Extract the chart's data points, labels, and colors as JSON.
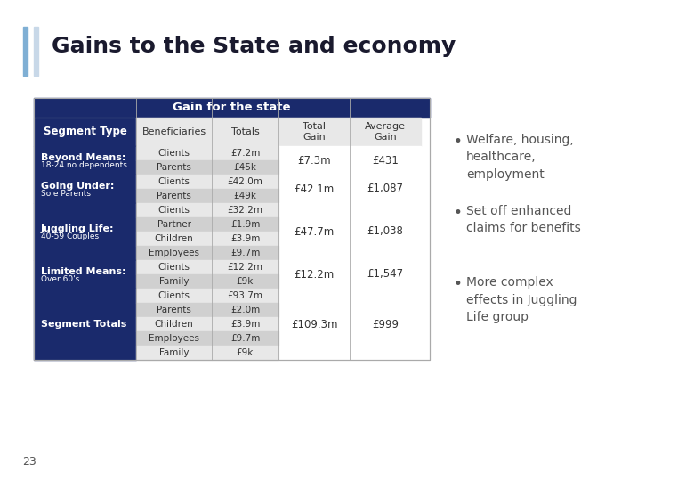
{
  "title": "Gains to the State and economy",
  "title_color": "#1a1a2e",
  "bg_color": "#ffffff",
  "table_header_bg": "#1a2a6c",
  "table_header_text": "#ffffff",
  "segment_bg": "#1a2a6c",
  "segment_text": "#ffffff",
  "row_odd_bg": "#ffffff",
  "row_even_bg": "#d9d9d9",
  "table_text_color": "#333333",
  "total_gain_text": "#333333",
  "gain_for_state_title": "Gain for the state",
  "col_headers": [
    "Segment Type",
    "Beneficiaries",
    "Totals",
    "Total\nGain",
    "Average\nGain"
  ],
  "segments": [
    {
      "name": "Beyond Means:",
      "sub": "18-24 no dependents",
      "rows": [
        [
          "Clients",
          "£7.2m"
        ],
        [
          "Parents",
          "£45k"
        ]
      ],
      "total_gain": "£7.3m",
      "avg_gain": "£431"
    },
    {
      "name": "Going Under:",
      "sub": "Sole Parents",
      "rows": [
        [
          "Clients",
          "£42.0m"
        ],
        [
          "Parents",
          "£49k"
        ]
      ],
      "total_gain": "£42.1m",
      "avg_gain": "£1,087"
    },
    {
      "name": "Juggling Life:",
      "sub": "40-59 Couples",
      "rows": [
        [
          "Clients",
          "£32.2m"
        ],
        [
          "Partner",
          "£1.9m"
        ],
        [
          "Children",
          "£3.9m"
        ],
        [
          "Employees",
          "£9.7m"
        ]
      ],
      "total_gain": "£47.7m",
      "avg_gain": "£1,038"
    },
    {
      "name": "Limited Means:",
      "sub": "Over 60's",
      "rows": [
        [
          "Clients",
          "£12.2m"
        ],
        [
          "Family",
          "£9k"
        ]
      ],
      "total_gain": "£12.2m",
      "avg_gain": "£1,547"
    },
    {
      "name": "Segment Totals",
      "sub": "",
      "rows": [
        [
          "Clients",
          "£93.7m"
        ],
        [
          "Parents",
          "£2.0m"
        ],
        [
          "Children",
          "£3.9m"
        ],
        [
          "Employees",
          "£9.7m"
        ],
        [
          "Family",
          "£9k"
        ]
      ],
      "total_gain": "£109.3m",
      "avg_gain": "£999"
    }
  ],
  "bullet_points": [
    "Welfare, housing,\nhealthcare,\nemployment",
    "Set off enhanced\nclaims for benefits",
    "More complex\neffects in Juggling\nLife group"
  ],
  "bullet_color": "#555555",
  "page_num": "23",
  "accent_color": "#6699cc"
}
